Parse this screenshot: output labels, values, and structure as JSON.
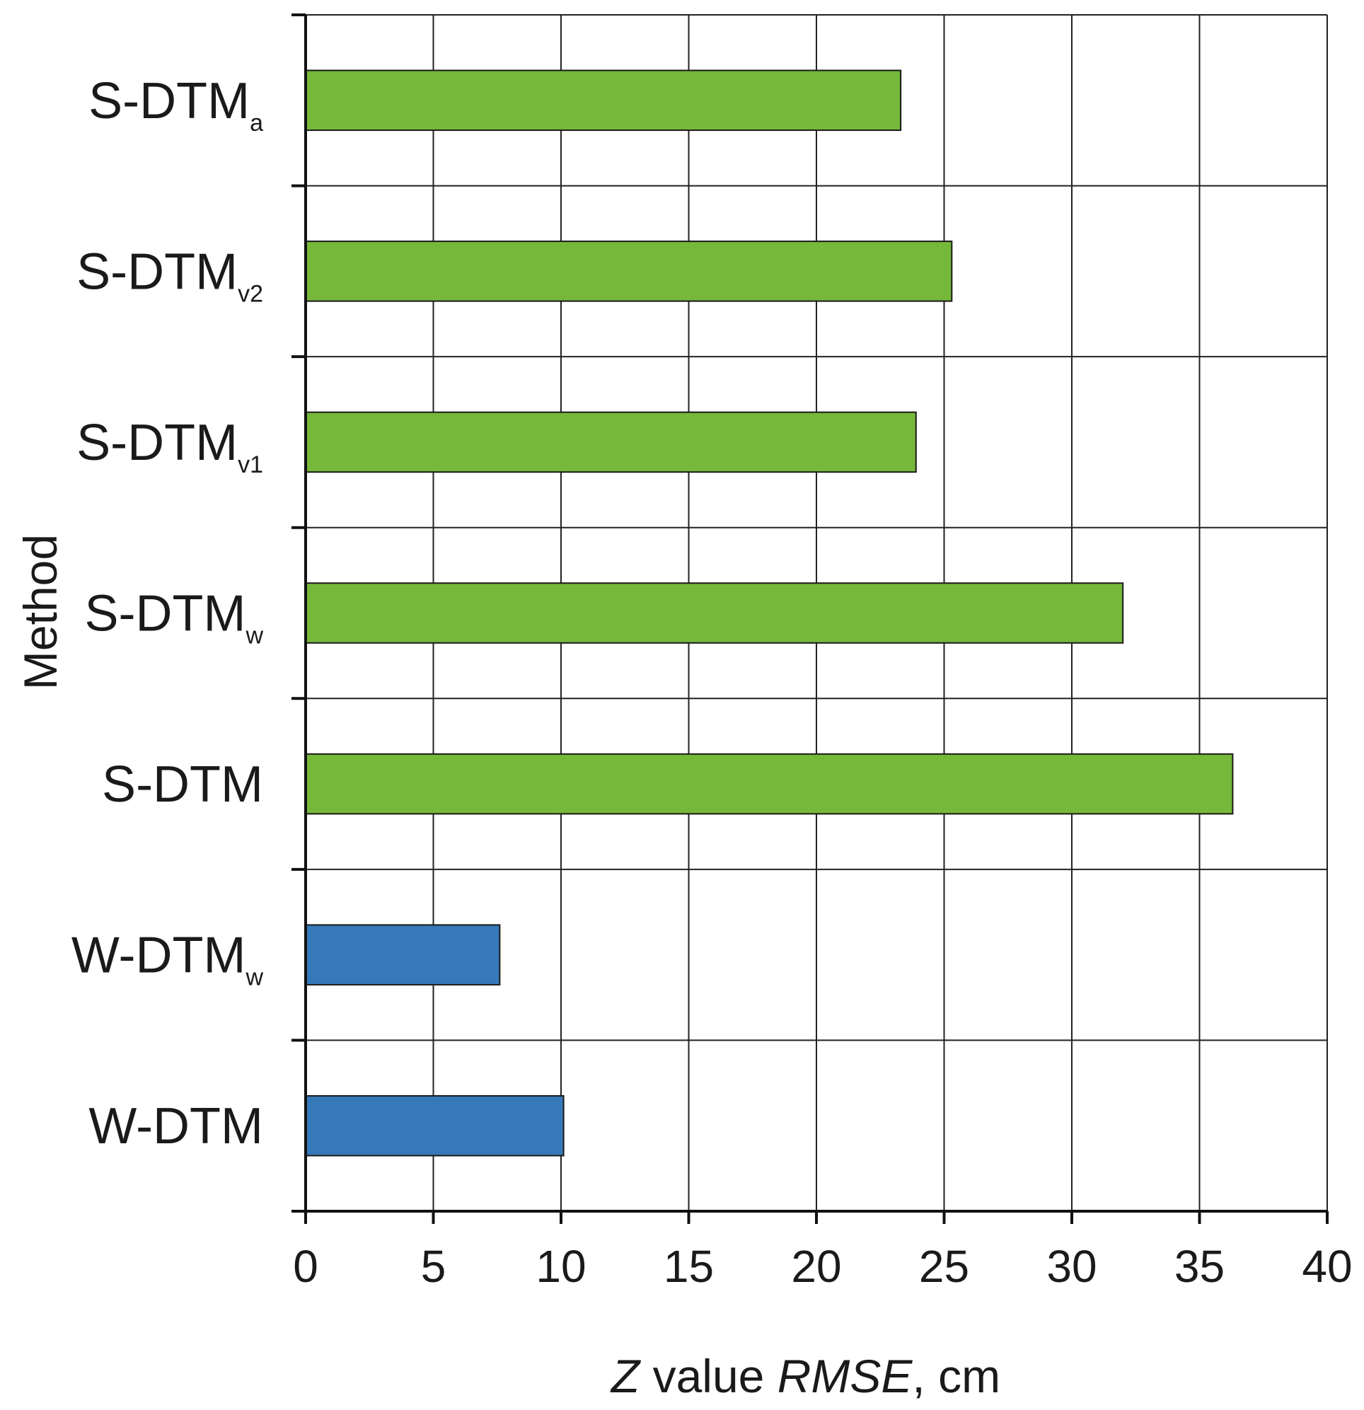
{
  "chart_data": {
    "type": "bar",
    "orientation": "horizontal",
    "categories": [
      {
        "main": "S-DTM",
        "sub": "a"
      },
      {
        "main": "S-DTM",
        "sub": "v2"
      },
      {
        "main": "S-DTM",
        "sub": "v1"
      },
      {
        "main": "S-DTM",
        "sub": "w"
      },
      {
        "main": "S-DTM",
        "sub": ""
      },
      {
        "main": "W-DTM",
        "sub": "w"
      },
      {
        "main": "W-DTM",
        "sub": ""
      }
    ],
    "values": [
      23.3,
      25.3,
      23.9,
      32.0,
      36.3,
      7.6,
      10.1
    ],
    "colors": [
      "#76b83a",
      "#76b83a",
      "#76b83a",
      "#76b83a",
      "#76b83a",
      "#3679b9",
      "#3679b9"
    ],
    "xlim": [
      0,
      40
    ],
    "xticks": [
      "0",
      "5",
      "10",
      "15",
      "20",
      "25",
      "30",
      "35",
      "40"
    ],
    "xlabel": {
      "italic_1": "Z",
      "plain_1": " value ",
      "italic_2": "RMSE",
      "plain_2": ", cm"
    },
    "ylabel": "Method",
    "grid": true,
    "title": ""
  }
}
